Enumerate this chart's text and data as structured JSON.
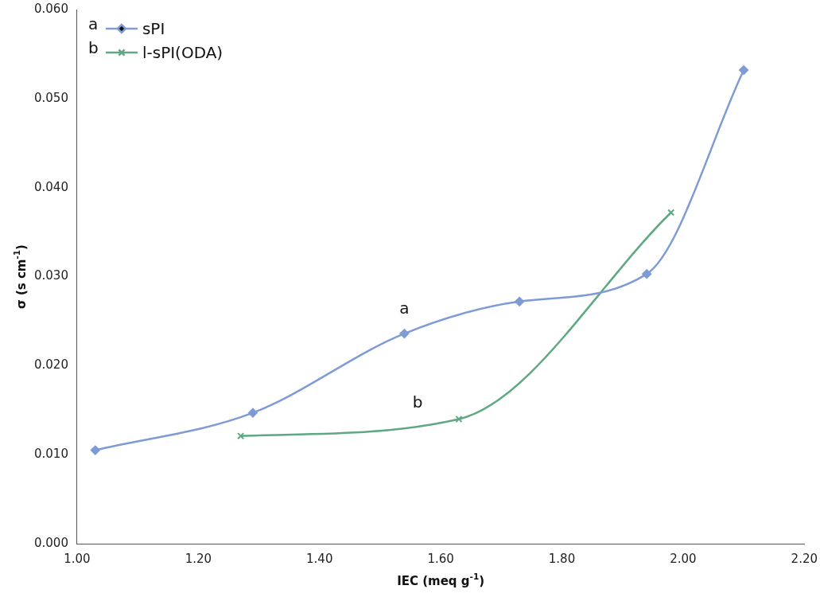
{
  "chart_data": {
    "type": "line",
    "xlabel": "IEC (meq g$^{-1}$)",
    "ylabel": "σ (s cm$^{-1}$)",
    "series": [
      {
        "name": "sPI",
        "color": "#7f9bd6",
        "marker": "diamond",
        "x": [
          1.03,
          1.29,
          1.54,
          1.73,
          1.94,
          2.1
        ],
        "values": [
          0.0105,
          0.0147,
          0.0236,
          0.0272,
          0.0303,
          0.0532
        ]
      },
      {
        "name": "l-sPI(ODA)",
        "color": "#5fa882",
        "marker": "cross",
        "x": [
          1.27,
          1.63,
          1.98
        ],
        "values": [
          0.0121,
          0.014,
          0.0372
        ]
      }
    ],
    "xlim": [
      1.0,
      2.2
    ],
    "xticks": [
      {
        "value": 1.0,
        "label": "1.00"
      },
      {
        "value": 1.2,
        "label": "1.20"
      },
      {
        "value": 1.4,
        "label": "1.40"
      },
      {
        "value": 1.6,
        "label": "1.60"
      },
      {
        "value": 1.8,
        "label": "1.80"
      },
      {
        "value": 2.0,
        "label": "2.00"
      },
      {
        "value": 2.2,
        "label": "2.20"
      }
    ],
    "ylim": [
      0,
      0.06
    ],
    "yticks": [
      {
        "value": 0,
        "label": "0.000"
      },
      {
        "value": 0.01,
        "label": "0.010"
      },
      {
        "value": 0.02,
        "label": "0.020"
      },
      {
        "value": 0.03,
        "label": "0.030"
      },
      {
        "value": 0.04,
        "label": "0.040"
      },
      {
        "value": 0.05,
        "label": "0.050"
      },
      {
        "value": 0.06,
        "label": "0.060"
      }
    ],
    "legend": "top left",
    "grid": false,
    "annotations": [
      "a",
      "b",
      {
        "text": "a",
        "x": 1.54,
        "y": 0.0236
      },
      {
        "text": "b",
        "x": 1.63,
        "y": 0.014
      }
    ]
  }
}
